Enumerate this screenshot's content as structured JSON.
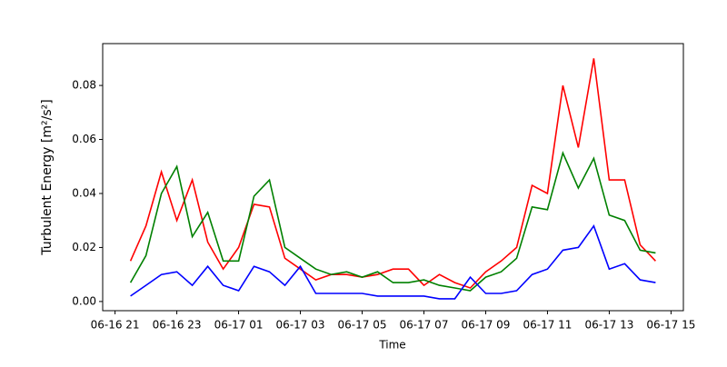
{
  "chart_data": {
    "type": "line",
    "y_label": "Turbulent Energy [m²/s²]",
    "x_label": "Time",
    "x": [
      21.5,
      22,
      22.5,
      23,
      23.5,
      24,
      24.5,
      25,
      25.5,
      26,
      26.5,
      27,
      27.5,
      28,
      28.5,
      29,
      29.5,
      30,
      30.5,
      31,
      31.5,
      32,
      32.5,
      33,
      33.5,
      34,
      34.5,
      35,
      35.5,
      36,
      36.5,
      37,
      37.5,
      38,
      38.5
    ],
    "series": [
      {
        "color": "#ff0000",
        "values": [
          0.015,
          0.028,
          0.048,
          0.03,
          0.045,
          0.022,
          0.012,
          0.02,
          0.036,
          0.035,
          0.016,
          0.012,
          0.008,
          0.01,
          0.01,
          0.009,
          0.01,
          0.012,
          0.012,
          0.006,
          0.01,
          0.007,
          0.005,
          0.011,
          0.015,
          0.02,
          0.043,
          0.04,
          0.08,
          0.057,
          0.09,
          0.045,
          0.045,
          0.021,
          0.015
        ]
      },
      {
        "color": "#008000",
        "values": [
          0.007,
          0.017,
          0.04,
          0.05,
          0.024,
          0.033,
          0.015,
          0.015,
          0.039,
          0.045,
          0.02,
          0.016,
          0.012,
          0.01,
          0.011,
          0.009,
          0.011,
          0.007,
          0.007,
          0.008,
          0.006,
          0.005,
          0.004,
          0.009,
          0.011,
          0.016,
          0.035,
          0.034,
          0.055,
          0.042,
          0.053,
          0.032,
          0.03,
          0.019,
          0.018
        ]
      },
      {
        "color": "#0000ff",
        "values": [
          0.002,
          0.006,
          0.01,
          0.011,
          0.006,
          0.013,
          0.006,
          0.004,
          0.013,
          0.011,
          0.006,
          0.013,
          0.003,
          0.003,
          0.003,
          0.003,
          0.002,
          0.002,
          0.002,
          0.002,
          0.001,
          0.001,
          0.009,
          0.003,
          0.003,
          0.004,
          0.01,
          0.012,
          0.019,
          0.02,
          0.028,
          0.012,
          0.014,
          0.008,
          0.007
        ]
      }
    ],
    "xlim": [
      20.6,
      39.4
    ],
    "xticks": [
      {
        "value": 21,
        "label": "06-16 21"
      },
      {
        "value": 23,
        "label": "06-16 23"
      },
      {
        "value": 25,
        "label": "06-17 01"
      },
      {
        "value": 27,
        "label": "06-17 03"
      },
      {
        "value": 29,
        "label": "06-17 05"
      },
      {
        "value": 31,
        "label": "06-17 07"
      },
      {
        "value": 33,
        "label": "06-17 09"
      },
      {
        "value": 35,
        "label": "06-17 11"
      },
      {
        "value": 37,
        "label": "06-17 13"
      },
      {
        "value": 39,
        "label": "06-17 15"
      }
    ],
    "ylim": [
      -0.0034,
      0.0955
    ],
    "yticks": [
      {
        "value": 0,
        "label": "0.00"
      },
      0.02,
      0.04,
      0.06,
      0.08
    ]
  }
}
